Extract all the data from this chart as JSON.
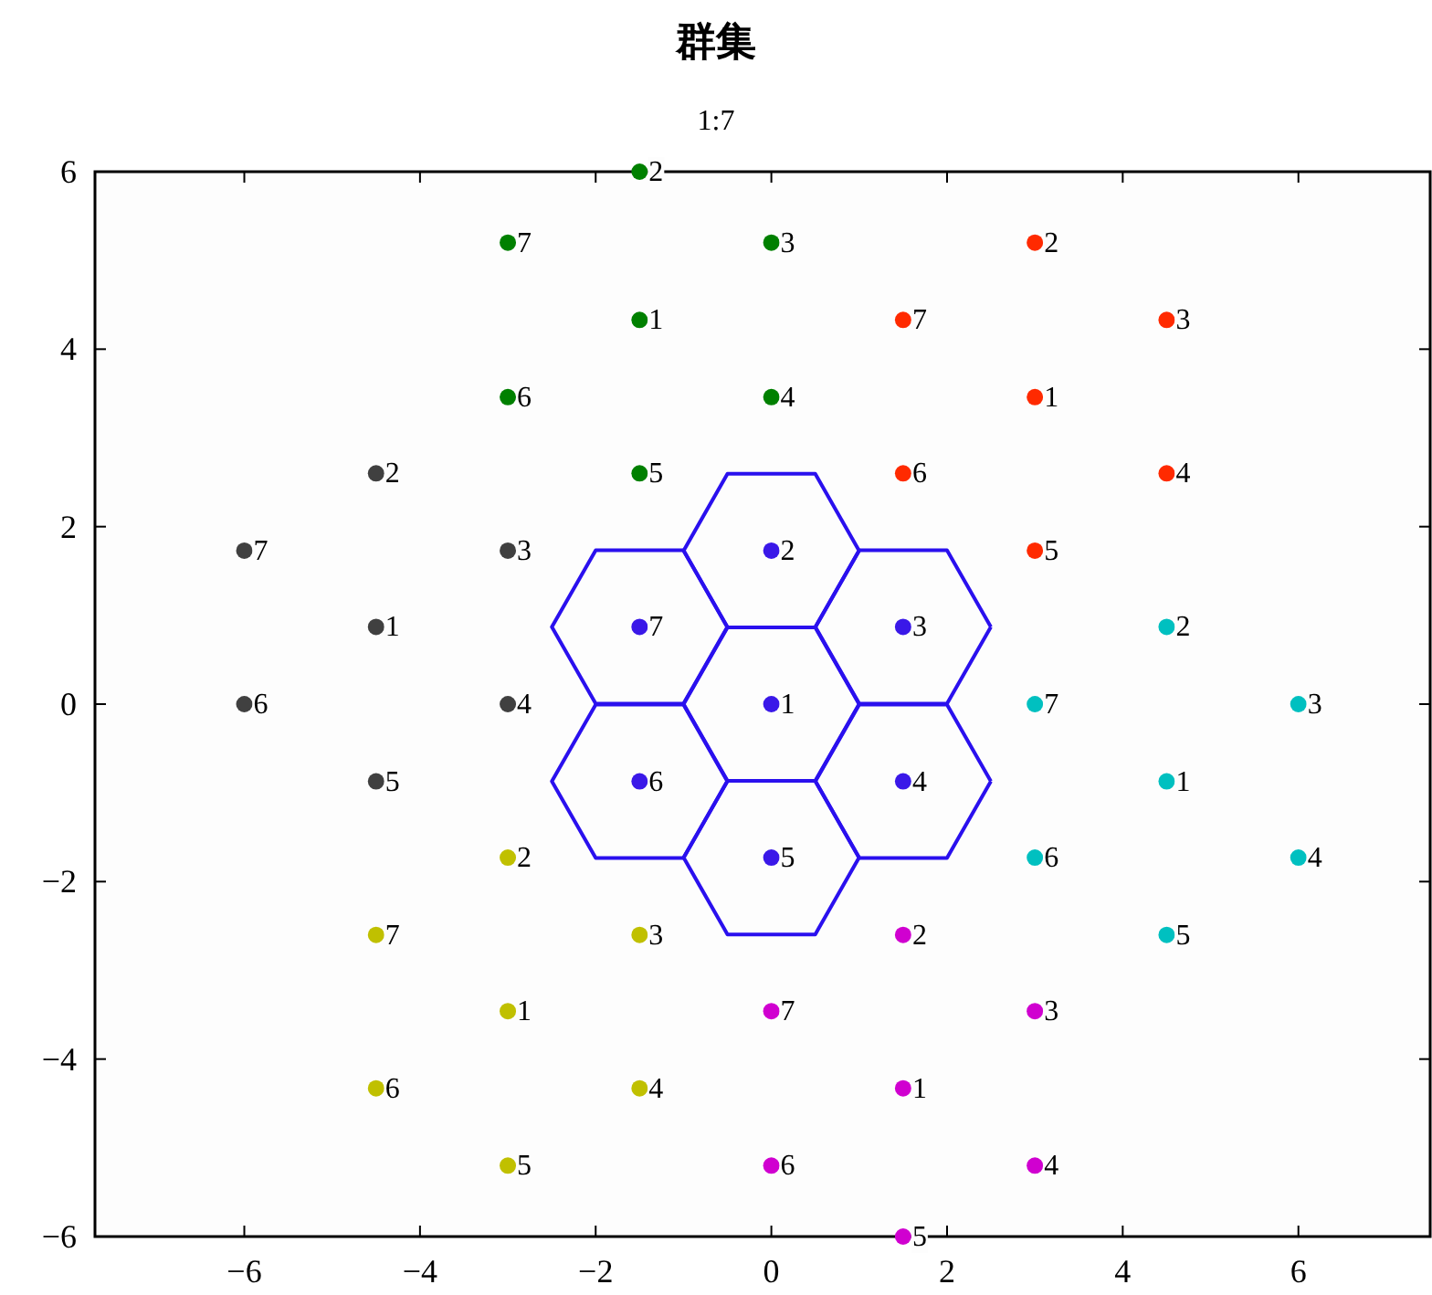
{
  "chart_data": {
    "type": "scatter",
    "title": "群集",
    "subtitle": "1:7",
    "xlim": [
      -7.7,
      7.5
    ],
    "ylim": [
      -6,
      6
    ],
    "xticks": [
      {
        "value": -6,
        "label": "−6"
      },
      {
        "value": -4,
        "label": "−4"
      },
      {
        "value": -2,
        "label": "−2"
      },
      0,
      2,
      4,
      6
    ],
    "yticks": [
      {
        "value": -6,
        "label": "−6"
      },
      {
        "value": -4,
        "label": "−4"
      },
      {
        "value": -2,
        "label": "−2"
      },
      0,
      2,
      4,
      6
    ],
    "marker": "circle",
    "series": [
      {
        "color": "#3a18e8",
        "x": [
          0,
          0,
          1.5,
          1.5,
          0,
          -1.5,
          -1.5
        ],
        "values": [
          0,
          1.73,
          0.87,
          -0.87,
          -1.73,
          -0.87,
          0.87
        ]
      },
      {
        "color": "#ff2a00",
        "x": [
          3,
          3,
          4.5,
          4.5,
          3,
          1.5,
          1.5
        ],
        "values": [
          3.46,
          5.2,
          4.33,
          2.6,
          1.73,
          2.6,
          4.33
        ]
      },
      {
        "color": "#008000",
        "x": [
          -1.5,
          -1.5,
          0,
          0,
          -1.5,
          -3,
          -3
        ],
        "values": [
          4.33,
          6.0,
          5.2,
          3.46,
          2.6,
          3.46,
          5.2
        ]
      },
      {
        "color": "#404040",
        "x": [
          -4.5,
          -4.5,
          -3,
          -3,
          -4.5,
          -6,
          -6
        ],
        "values": [
          0.87,
          2.6,
          1.73,
          0,
          -0.87,
          0,
          1.73
        ]
      },
      {
        "color": "#c0c000",
        "x": [
          -3,
          -3,
          -1.5,
          -1.5,
          -3,
          -4.5,
          -4.5
        ],
        "values": [
          -3.46,
          -1.73,
          -2.6,
          -4.33,
          -5.2,
          -4.33,
          -2.6
        ]
      },
      {
        "color": "#d000d0",
        "x": [
          1.5,
          1.5,
          3,
          3,
          1.5,
          0,
          0
        ],
        "values": [
          -4.33,
          -2.6,
          -3.46,
          -5.2,
          -6.0,
          -5.2,
          -3.46
        ]
      },
      {
        "color": "#00c0c0",
        "x": [
          4.5,
          4.5,
          6,
          6,
          4.5,
          3,
          3
        ],
        "values": [
          -0.87,
          0.87,
          0,
          -1.73,
          -2.6,
          -1.73,
          0
        ]
      }
    ],
    "annotations": [
      {
        "text": "1",
        "x": 0,
        "y": 0
      },
      {
        "text": "2",
        "x": 0,
        "y": 1.73
      },
      {
        "text": "3",
        "x": 1.5,
        "y": 0.87
      },
      {
        "text": "4",
        "x": 1.5,
        "y": -0.87
      },
      {
        "text": "5",
        "x": 0,
        "y": -1.73
      },
      {
        "text": "6",
        "x": -1.5,
        "y": -0.87
      },
      {
        "text": "7",
        "x": -1.5,
        "y": 0.87
      },
      {
        "text": "1",
        "x": 3,
        "y": 3.46
      },
      {
        "text": "2",
        "x": 3,
        "y": 5.2
      },
      {
        "text": "3",
        "x": 4.5,
        "y": 4.33
      },
      {
        "text": "4",
        "x": 4.5,
        "y": 2.6
      },
      {
        "text": "5",
        "x": 3,
        "y": 1.73
      },
      {
        "text": "6",
        "x": 1.5,
        "y": 2.6
      },
      {
        "text": "7",
        "x": 1.5,
        "y": 4.33
      },
      {
        "text": "1",
        "x": -1.5,
        "y": 4.33
      },
      {
        "text": "2",
        "x": -1.5,
        "y": 6.0
      },
      {
        "text": "3",
        "x": 0,
        "y": 5.2
      },
      {
        "text": "4",
        "x": 0,
        "y": 3.46
      },
      {
        "text": "5",
        "x": -1.5,
        "y": 2.6
      },
      {
        "text": "6",
        "x": -3,
        "y": 3.46
      },
      {
        "text": "7",
        "x": -3,
        "y": 5.2
      },
      {
        "text": "1",
        "x": -4.5,
        "y": 0.87
      },
      {
        "text": "2",
        "x": -4.5,
        "y": 2.6
      },
      {
        "text": "3",
        "x": -3,
        "y": 1.73
      },
      {
        "text": "4",
        "x": -3,
        "y": 0
      },
      {
        "text": "5",
        "x": -4.5,
        "y": -0.87
      },
      {
        "text": "6",
        "x": -6,
        "y": 0
      },
      {
        "text": "7",
        "x": -6,
        "y": 1.73
      },
      {
        "text": "1",
        "x": -3,
        "y": -3.46
      },
      {
        "text": "2",
        "x": -3,
        "y": -1.73
      },
      {
        "text": "3",
        "x": -1.5,
        "y": -2.6
      },
      {
        "text": "4",
        "x": -1.5,
        "y": -4.33
      },
      {
        "text": "5",
        "x": -3,
        "y": -5.2
      },
      {
        "text": "6",
        "x": -4.5,
        "y": -4.33
      },
      {
        "text": "7",
        "x": -4.5,
        "y": -2.6
      },
      {
        "text": "1",
        "x": 1.5,
        "y": -4.33
      },
      {
        "text": "2",
        "x": 1.5,
        "y": -2.6
      },
      {
        "text": "3",
        "x": 3,
        "y": -3.46
      },
      {
        "text": "4",
        "x": 3,
        "y": -5.2
      },
      {
        "text": "5",
        "x": 1.5,
        "y": -6.0
      },
      {
        "text": "6",
        "x": 0,
        "y": -5.2
      },
      {
        "text": "7",
        "x": 0,
        "y": -3.46
      },
      {
        "text": "1",
        "x": 4.5,
        "y": -0.87
      },
      {
        "text": "2",
        "x": 4.5,
        "y": 0.87
      },
      {
        "text": "3",
        "x": 6,
        "y": 0
      },
      {
        "text": "4",
        "x": 6,
        "y": -1.73
      },
      {
        "text": "5",
        "x": 4.5,
        "y": -2.6
      },
      {
        "text": "6",
        "x": 3,
        "y": -1.73
      },
      {
        "text": "7",
        "x": 3,
        "y": 0
      }
    ]
  }
}
